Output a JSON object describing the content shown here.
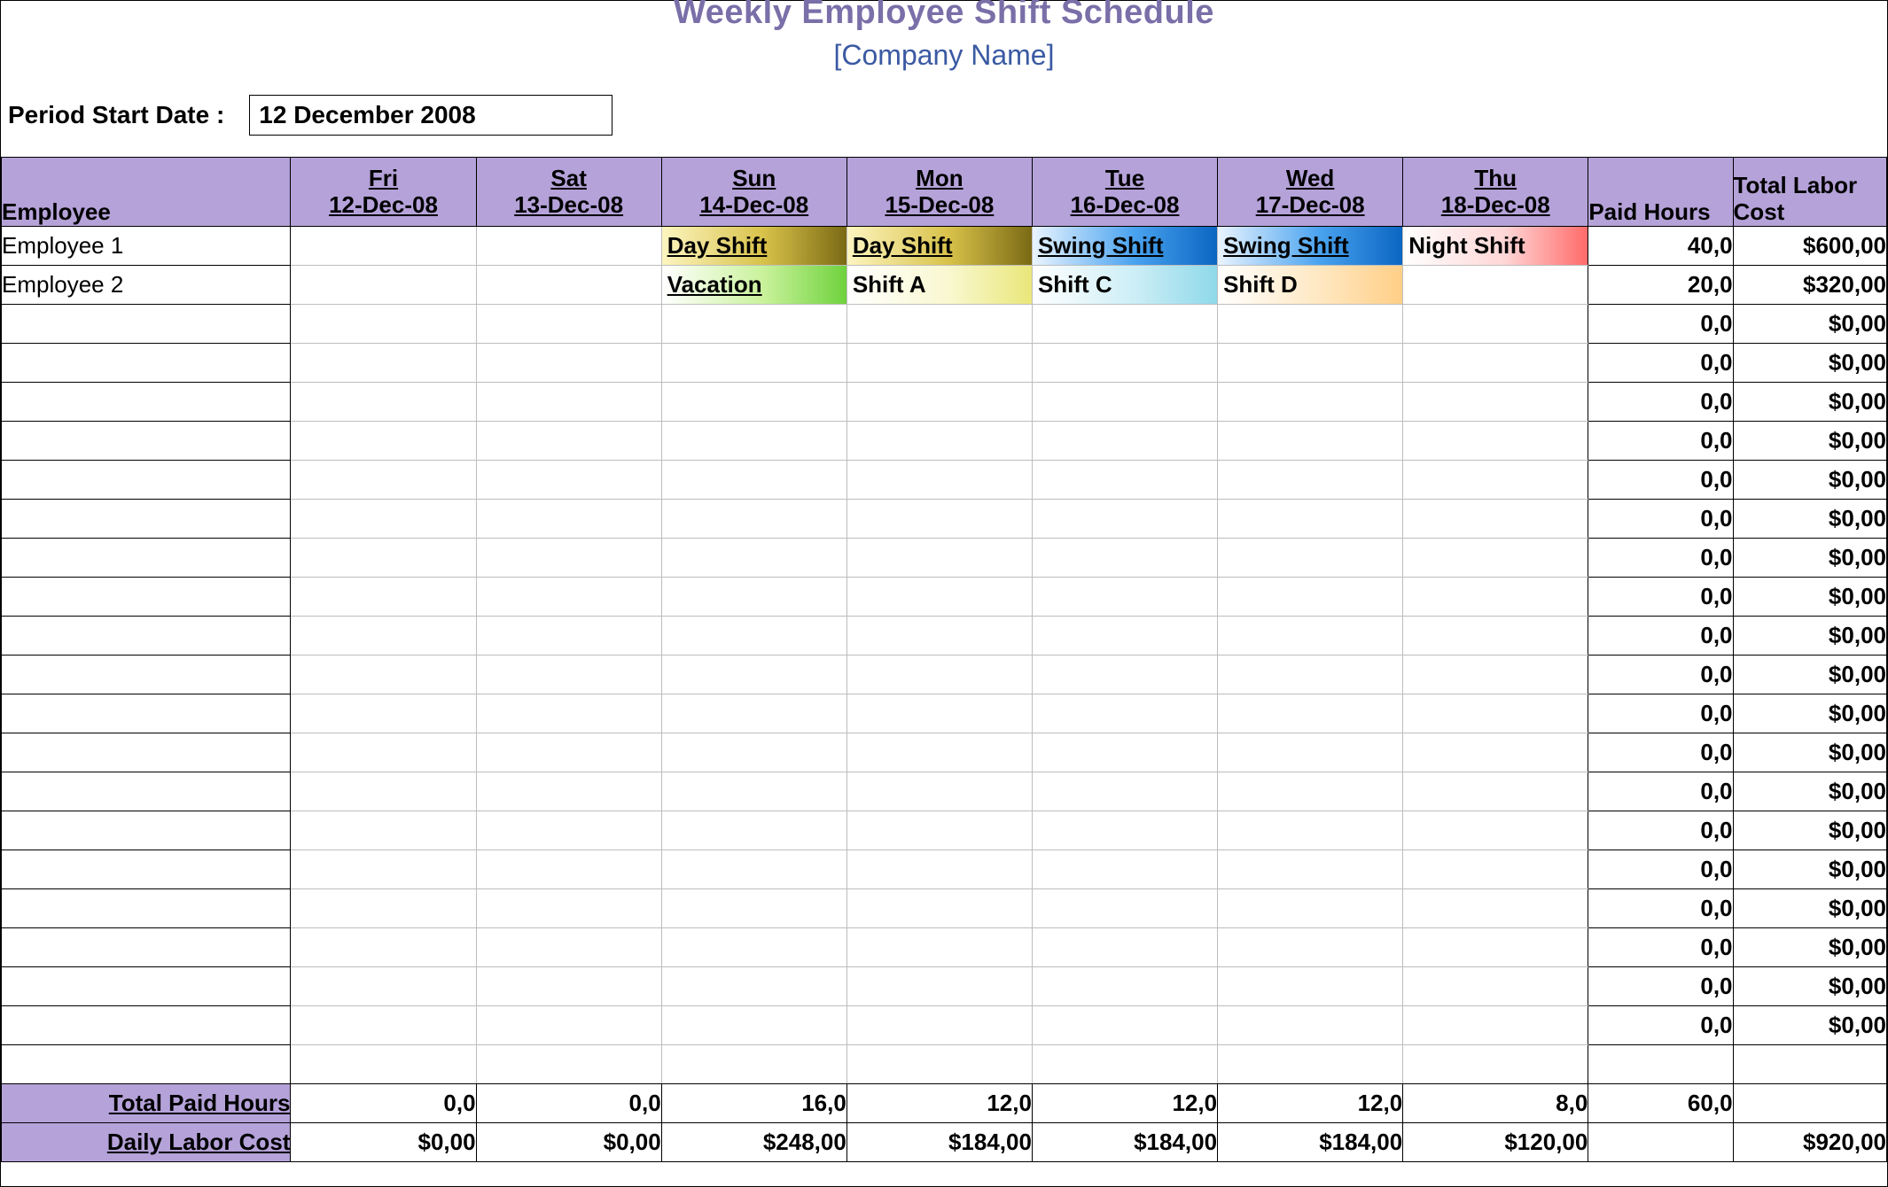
{
  "title": "Weekly Employee Shift Schedule",
  "subtitle": "[Company Name]",
  "period_label": "Period Start Date :",
  "period_value": "12 December 2008",
  "colors": {
    "header_bg": "#b5a2d9",
    "title_color": "#7a6fa8",
    "subtitle_color": "#3b5aa3",
    "border": "#000000",
    "inner_border": "#bdbdbd"
  },
  "columns": {
    "employee": "Employee",
    "paid_hours": "Paid Hours",
    "labor_cost": "Total Labor Cost",
    "days": [
      {
        "dow": "Fri",
        "date": "12-Dec-08"
      },
      {
        "dow": "Sat",
        "date": "13-Dec-08"
      },
      {
        "dow": "Sun",
        "date": "14-Dec-08"
      },
      {
        "dow": "Mon",
        "date": "15-Dec-08"
      },
      {
        "dow": "Tue",
        "date": "16-Dec-08"
      },
      {
        "dow": "Wed",
        "date": "17-Dec-08"
      },
      {
        "dow": "Thu",
        "date": "18-Dec-08"
      }
    ]
  },
  "shift_styles": {
    "Day Shift": {
      "text_color": "#000000",
      "gradient": [
        "#fdf5c0",
        "#d8c24a",
        "#7a6a15"
      ],
      "underline": true
    },
    "Swing Shift": {
      "text_color": "#000000",
      "gradient": [
        "#eaf4ff",
        "#4aa3ef",
        "#0a66c2"
      ],
      "underline": true
    },
    "Night Shift": {
      "text_color": "#000000",
      "gradient": [
        "#ffffff",
        "#ffd6d6",
        "#ff6b6b"
      ],
      "underline": false
    },
    "Vacation": {
      "text_color": "#000000",
      "gradient": [
        "#ffffff",
        "#c9f29b",
        "#6fd23d"
      ],
      "underline": true
    },
    "Shift A": {
      "text_color": "#000000",
      "gradient": [
        "#ffffff",
        "#f9f8d0",
        "#e9e77a"
      ],
      "underline": false
    },
    "Shift C": {
      "text_color": "#000000",
      "gradient": [
        "#ffffff",
        "#cdeef6",
        "#8fd9ea"
      ],
      "underline": false
    },
    "Shift  D": {
      "text_color": "#000000",
      "gradient": [
        "#ffffff",
        "#ffe8c2",
        "#ffcf87"
      ],
      "underline": false
    }
  },
  "rows": [
    {
      "employee": "Employee 1",
      "shifts": [
        "",
        "",
        "Day Shift",
        "Day Shift",
        "Swing Shift",
        "Swing Shift",
        "Night Shift"
      ],
      "paid_hours": "40,0",
      "labor_cost": "$600,00"
    },
    {
      "employee": "Employee 2",
      "shifts": [
        "",
        "",
        "Vacation",
        "Shift A",
        "Shift C",
        "Shift  D",
        ""
      ],
      "paid_hours": "20,0",
      "labor_cost": "$320,00"
    },
    {
      "employee": "",
      "shifts": [
        "",
        "",
        "",
        "",
        "",
        "",
        ""
      ],
      "paid_hours": "0,0",
      "labor_cost": "$0,00"
    },
    {
      "employee": "",
      "shifts": [
        "",
        "",
        "",
        "",
        "",
        "",
        ""
      ],
      "paid_hours": "0,0",
      "labor_cost": "$0,00"
    },
    {
      "employee": "",
      "shifts": [
        "",
        "",
        "",
        "",
        "",
        "",
        ""
      ],
      "paid_hours": "0,0",
      "labor_cost": "$0,00"
    },
    {
      "employee": "",
      "shifts": [
        "",
        "",
        "",
        "",
        "",
        "",
        ""
      ],
      "paid_hours": "0,0",
      "labor_cost": "$0,00"
    },
    {
      "employee": "",
      "shifts": [
        "",
        "",
        "",
        "",
        "",
        "",
        ""
      ],
      "paid_hours": "0,0",
      "labor_cost": "$0,00"
    },
    {
      "employee": "",
      "shifts": [
        "",
        "",
        "",
        "",
        "",
        "",
        ""
      ],
      "paid_hours": "0,0",
      "labor_cost": "$0,00"
    },
    {
      "employee": "",
      "shifts": [
        "",
        "",
        "",
        "",
        "",
        "",
        ""
      ],
      "paid_hours": "0,0",
      "labor_cost": "$0,00"
    },
    {
      "employee": "",
      "shifts": [
        "",
        "",
        "",
        "",
        "",
        "",
        ""
      ],
      "paid_hours": "0,0",
      "labor_cost": "$0,00"
    },
    {
      "employee": "",
      "shifts": [
        "",
        "",
        "",
        "",
        "",
        "",
        ""
      ],
      "paid_hours": "0,0",
      "labor_cost": "$0,00"
    },
    {
      "employee": "",
      "shifts": [
        "",
        "",
        "",
        "",
        "",
        "",
        ""
      ],
      "paid_hours": "0,0",
      "labor_cost": "$0,00"
    },
    {
      "employee": "",
      "shifts": [
        "",
        "",
        "",
        "",
        "",
        "",
        ""
      ],
      "paid_hours": "0,0",
      "labor_cost": "$0,00"
    },
    {
      "employee": "",
      "shifts": [
        "",
        "",
        "",
        "",
        "",
        "",
        ""
      ],
      "paid_hours": "0,0",
      "labor_cost": "$0,00"
    },
    {
      "employee": "",
      "shifts": [
        "",
        "",
        "",
        "",
        "",
        "",
        ""
      ],
      "paid_hours": "0,0",
      "labor_cost": "$0,00"
    },
    {
      "employee": "",
      "shifts": [
        "",
        "",
        "",
        "",
        "",
        "",
        ""
      ],
      "paid_hours": "0,0",
      "labor_cost": "$0,00"
    },
    {
      "employee": "",
      "shifts": [
        "",
        "",
        "",
        "",
        "",
        "",
        ""
      ],
      "paid_hours": "0,0",
      "labor_cost": "$0,00"
    },
    {
      "employee": "",
      "shifts": [
        "",
        "",
        "",
        "",
        "",
        "",
        ""
      ],
      "paid_hours": "0,0",
      "labor_cost": "$0,00"
    },
    {
      "employee": "",
      "shifts": [
        "",
        "",
        "",
        "",
        "",
        "",
        ""
      ],
      "paid_hours": "0,0",
      "labor_cost": "$0,00"
    },
    {
      "employee": "",
      "shifts": [
        "",
        "",
        "",
        "",
        "",
        "",
        ""
      ],
      "paid_hours": "0,0",
      "labor_cost": "$0,00"
    },
    {
      "employee": "",
      "shifts": [
        "",
        "",
        "",
        "",
        "",
        "",
        ""
      ],
      "paid_hours": "0,0",
      "labor_cost": "$0,00"
    },
    {
      "employee": "",
      "shifts": [
        "",
        "",
        "",
        "",
        "",
        "",
        ""
      ],
      "paid_hours": "",
      "labor_cost": ""
    }
  ],
  "totals": {
    "paid_hours_label": "Total Paid Hours",
    "labor_cost_label": "Daily Labor Cost",
    "paid_hours_by_day": [
      "0,0",
      "0,0",
      "16,0",
      "12,0",
      "12,0",
      "12,0",
      "8,0"
    ],
    "labor_cost_by_day": [
      "$0,00",
      "$0,00",
      "$248,00",
      "$184,00",
      "$184,00",
      "$184,00",
      "$120,00"
    ],
    "grand_paid_hours": "60,0",
    "grand_labor_cost": "$920,00"
  }
}
